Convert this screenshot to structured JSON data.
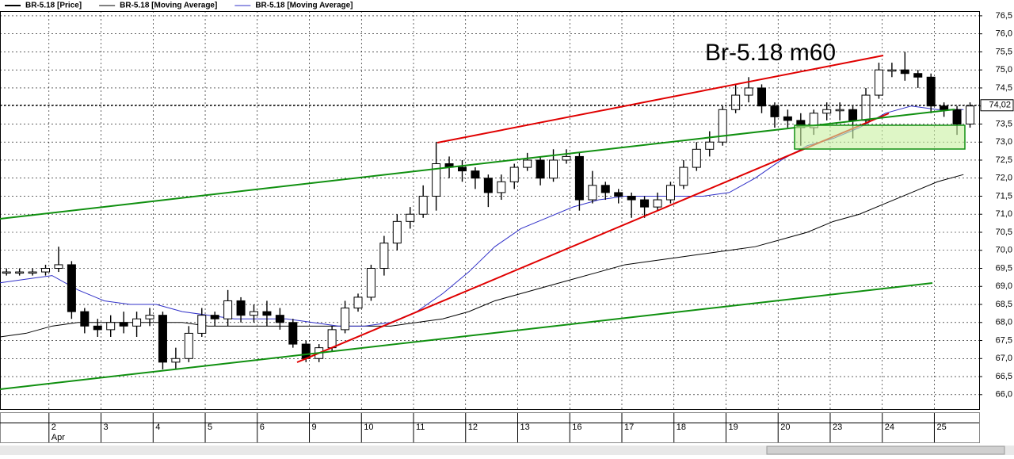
{
  "chart_data": {
    "type": "candlestick",
    "title": "Br-5.18 m60",
    "price": {
      "name": "BR-5.18 [Price]",
      "color": "#000000",
      "up_color": "#ffffff",
      "x": [
        0.125,
        0.375,
        0.625,
        0.875,
        1.125,
        1.375,
        1.625,
        1.875,
        2.125,
        2.375,
        2.625,
        2.875,
        3.125,
        3.375,
        3.625,
        3.875,
        4.125,
        4.375,
        4.625,
        4.875,
        5.125,
        5.375,
        5.625,
        5.875,
        6.125,
        6.375,
        6.625,
        6.875,
        7.125,
        7.375,
        7.625,
        7.875,
        8.125,
        8.375,
        8.625,
        8.875,
        9.125,
        9.375,
        9.625,
        9.875,
        10.125,
        10.375,
        10.625,
        10.875,
        11.125,
        11.375,
        11.625,
        11.875,
        12.125,
        12.375,
        12.625,
        12.875,
        13.125,
        13.375,
        13.625,
        13.875,
        14.125,
        14.375,
        14.625,
        14.875,
        15.125,
        15.375,
        15.625,
        15.875,
        16.125,
        16.375,
        16.625,
        16.875,
        17.125,
        17.375,
        17.625,
        17.875,
        18.125,
        18.375,
        18.625
      ],
      "open": [
        69.4,
        69.4,
        69.4,
        69.4,
        69.5,
        69.6,
        68.3,
        67.9,
        67.8,
        68.0,
        67.9,
        68.1,
        68.2,
        66.9,
        67.0,
        67.7,
        68.2,
        68.1,
        68.6,
        68.2,
        68.3,
        68.2,
        68.0,
        67.4,
        67.0,
        67.3,
        67.8,
        68.4,
        68.7,
        69.5,
        70.2,
        70.8,
        71.0,
        71.5,
        72.4,
        72.3,
        72.2,
        72.0,
        71.6,
        71.9,
        72.3,
        72.5,
        72.0,
        72.5,
        72.6,
        71.4,
        71.8,
        71.6,
        71.5,
        71.4,
        71.2,
        71.4,
        71.8,
        72.3,
        72.8,
        73.0,
        73.9,
        74.3,
        74.5,
        74.0,
        73.7,
        73.6,
        73.4,
        73.8,
        73.9,
        73.9,
        73.6,
        74.3,
        75.0,
        75.0,
        74.9,
        74.8,
        74.0,
        73.9,
        73.5
      ],
      "high": [
        69.5,
        69.5,
        69.5,
        69.6,
        70.1,
        69.7,
        68.4,
        68.1,
        68.2,
        68.3,
        68.3,
        68.4,
        68.3,
        67.3,
        67.9,
        68.4,
        68.3,
        68.9,
        68.7,
        68.5,
        68.6,
        68.4,
        68.1,
        67.5,
        67.4,
        67.9,
        68.6,
        68.8,
        69.6,
        70.4,
        71.0,
        71.2,
        71.8,
        73.0,
        72.6,
        72.5,
        72.3,
        72.1,
        72.1,
        72.4,
        72.7,
        72.6,
        72.8,
        72.8,
        72.7,
        72.2,
        71.9,
        71.7,
        71.6,
        71.5,
        71.6,
        71.9,
        72.5,
        73.0,
        73.3,
        74.0,
        74.6,
        74.8,
        74.6,
        74.1,
        73.9,
        73.8,
        73.9,
        74.1,
        74.1,
        74.0,
        74.5,
        75.2,
        75.2,
        75.5,
        75.0,
        74.9,
        74.1,
        74.0,
        74.1
      ],
      "low": [
        69.3,
        69.3,
        69.3,
        69.3,
        69.4,
        68.1,
        67.7,
        67.6,
        67.6,
        67.7,
        67.6,
        67.9,
        66.7,
        66.7,
        66.9,
        67.6,
        67.9,
        67.9,
        68.0,
        68.0,
        67.9,
        67.8,
        67.3,
        66.9,
        66.9,
        67.2,
        67.7,
        68.3,
        68.6,
        69.3,
        70.0,
        70.6,
        70.9,
        71.1,
        72.0,
        71.9,
        71.7,
        71.2,
        71.4,
        71.7,
        72.2,
        71.8,
        71.9,
        72.4,
        71.1,
        71.3,
        71.4,
        71.3,
        70.9,
        70.9,
        71.1,
        71.3,
        71.7,
        72.2,
        72.6,
        72.9,
        73.8,
        74.1,
        73.8,
        73.4,
        73.4,
        72.9,
        73.2,
        73.6,
        73.6,
        73.1,
        73.5,
        74.2,
        74.8,
        74.7,
        74.5,
        73.8,
        73.7,
        73.2,
        73.4
      ],
      "close": [
        69.4,
        69.4,
        69.4,
        69.5,
        69.6,
        68.3,
        67.9,
        67.8,
        68.0,
        67.9,
        68.1,
        68.2,
        66.9,
        67.0,
        67.7,
        68.2,
        68.1,
        68.6,
        68.2,
        68.3,
        68.2,
        68.0,
        67.4,
        67.0,
        67.3,
        67.8,
        68.4,
        68.7,
        69.5,
        70.2,
        70.8,
        71.0,
        71.5,
        72.4,
        72.3,
        72.2,
        72.0,
        71.6,
        71.9,
        72.3,
        72.5,
        72.0,
        72.5,
        72.6,
        71.4,
        71.8,
        71.6,
        71.5,
        71.4,
        71.2,
        71.4,
        71.8,
        72.3,
        72.8,
        73.0,
        73.9,
        74.3,
        74.5,
        74.0,
        73.7,
        73.6,
        73.4,
        73.8,
        73.9,
        73.9,
        73.6,
        74.3,
        75.0,
        75.0,
        74.9,
        74.8,
        74.0,
        73.9,
        73.5,
        74.0
      ]
    },
    "series": [
      {
        "name": "BR-5.18 [Moving Average]",
        "color": "#000000",
        "x": [
          0,
          0.5,
          1,
          1.5,
          2,
          2.5,
          3,
          3.5,
          4,
          4.5,
          5,
          5.5,
          6,
          6.5,
          7,
          7.5,
          8,
          8.5,
          9,
          9.5,
          10,
          10.5,
          11,
          11.5,
          12,
          12.5,
          13,
          13.5,
          14,
          14.5,
          15,
          15.5,
          16,
          16.5,
          17,
          17.5,
          18,
          18.5
        ],
        "values": [
          67.6,
          67.7,
          67.9,
          68.0,
          68.0,
          68.0,
          68.0,
          68.0,
          67.9,
          67.9,
          67.9,
          67.9,
          67.9,
          67.9,
          67.9,
          67.9,
          68.0,
          68.1,
          68.3,
          68.6,
          68.8,
          69.0,
          69.2,
          69.4,
          69.6,
          69.7,
          69.8,
          69.9,
          70.0,
          70.1,
          70.3,
          70.5,
          70.8,
          71.0,
          71.3,
          71.6,
          71.9,
          72.1
        ]
      },
      {
        "name": "BR-5.18 [Moving Average]",
        "color": "#3030c8",
        "x": [
          0,
          0.5,
          1,
          1.5,
          2,
          2.5,
          3,
          3.5,
          4,
          4.5,
          5,
          5.5,
          6,
          6.5,
          7,
          7.5,
          8,
          8.5,
          9,
          9.5,
          10,
          10.5,
          11,
          11.5,
          12,
          12.5,
          13,
          13.5,
          14,
          14.5,
          15,
          15.5,
          16,
          16.5,
          17,
          17.5,
          18,
          18.5
        ],
        "values": [
          69.1,
          69.2,
          69.3,
          68.9,
          68.6,
          68.5,
          68.5,
          68.3,
          68.2,
          68.1,
          68.1,
          68.1,
          68.0,
          67.9,
          67.9,
          68.0,
          68.3,
          68.8,
          69.4,
          70.1,
          70.6,
          70.9,
          71.2,
          71.4,
          71.5,
          71.5,
          71.5,
          71.5,
          71.6,
          72.0,
          72.5,
          72.9,
          73.1,
          73.4,
          73.8,
          74.0,
          73.9,
          73.9
        ]
      }
    ],
    "last_price": {
      "value": 74.02,
      "label": "74,02"
    },
    "xlim": [
      0,
      18.8
    ],
    "xticks": [
      {
        "value": 0.94,
        "label": "2"
      },
      {
        "value": 1.94,
        "label": "3"
      },
      {
        "value": 2.94,
        "label": "4"
      },
      {
        "value": 3.94,
        "label": "5"
      },
      {
        "value": 4.94,
        "label": "6"
      },
      {
        "value": 5.94,
        "label": "9"
      },
      {
        "value": 6.94,
        "label": "10"
      },
      {
        "value": 7.94,
        "label": "11"
      },
      {
        "value": 8.94,
        "label": "12"
      },
      {
        "value": 9.94,
        "label": "13"
      },
      {
        "value": 10.94,
        "label": "16"
      },
      {
        "value": 11.94,
        "label": "17"
      },
      {
        "value": 12.94,
        "label": "18"
      },
      {
        "value": 13.94,
        "label": "19"
      },
      {
        "value": 14.94,
        "label": "20"
      },
      {
        "value": 15.94,
        "label": "23"
      },
      {
        "value": 16.94,
        "label": "24"
      },
      {
        "value": 17.94,
        "label": "25"
      }
    ],
    "month_label": "Apr",
    "ylim": [
      65.6,
      76.63
    ],
    "yticks": [
      {
        "value": 66.0,
        "label": "66,0"
      },
      {
        "value": 66.5,
        "label": "66,5"
      },
      {
        "value": 67.0,
        "label": "67,0"
      },
      {
        "value": 67.5,
        "label": "67,5"
      },
      {
        "value": 68.0,
        "label": "68,0"
      },
      {
        "value": 68.5,
        "label": "68,5"
      },
      {
        "value": 69.0,
        "label": "69,0"
      },
      {
        "value": 69.5,
        "label": "69,5"
      },
      {
        "value": 70.0,
        "label": "70,0"
      },
      {
        "value": 70.5,
        "label": "70,5"
      },
      {
        "value": 71.0,
        "label": "71,0"
      },
      {
        "value": 71.5,
        "label": "71,5"
      },
      {
        "value": 72.0,
        "label": "72,0"
      },
      {
        "value": 72.5,
        "label": "72,5"
      },
      {
        "value": 73.0,
        "label": "73,0"
      },
      {
        "value": 73.5,
        "label": "73,5"
      },
      {
        "value": 74.0,
        "label": "74,0"
      },
      {
        "value": 74.5,
        "label": "74,5"
      },
      {
        "value": 75.0,
        "label": "75,0"
      },
      {
        "value": 75.5,
        "label": "75,5"
      },
      {
        "value": 76.0,
        "label": "76,0"
      },
      {
        "value": 76.5,
        "label": "76,5"
      }
    ],
    "grid": true
  }
}
